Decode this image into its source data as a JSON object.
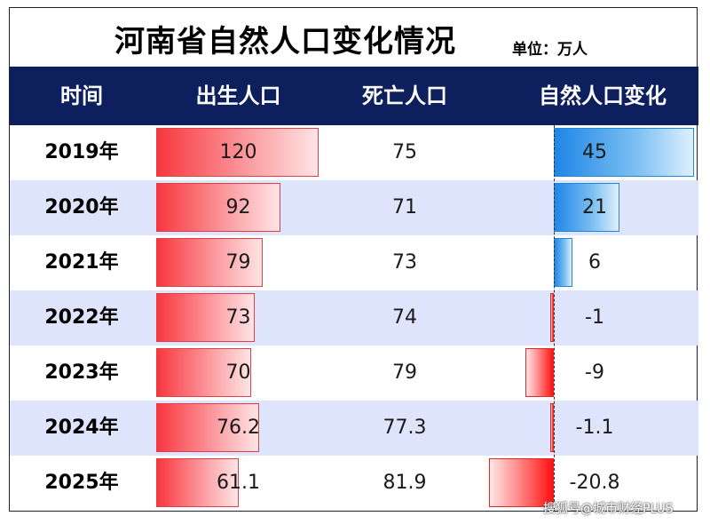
{
  "title": "河南省自然人口变化情况",
  "unit": "单位：万人",
  "headers": {
    "time": "时间",
    "birth": "出生人口",
    "death": "死亡人口",
    "natural": "自然人口变化"
  },
  "chart_data": {
    "type": "table",
    "title": "河南省自然人口变化情况",
    "unit": "单位：万人",
    "columns": [
      "时间",
      "出生人口",
      "死亡人口",
      "自然人口变化"
    ],
    "rows": [
      {
        "year": "2019年",
        "birth": 120,
        "birth_label": "120",
        "death": 75,
        "death_label": "75",
        "natural": 45,
        "natural_label": "45"
      },
      {
        "year": "2020年",
        "birth": 92,
        "birth_label": "92",
        "death": 71,
        "death_label": "71",
        "natural": 21,
        "natural_label": "21"
      },
      {
        "year": "2021年",
        "birth": 79,
        "birth_label": "79",
        "death": 73,
        "death_label": "73",
        "natural": 6,
        "natural_label": "6"
      },
      {
        "year": "2022年",
        "birth": 73,
        "birth_label": "73",
        "death": 74,
        "death_label": "74",
        "natural": -1,
        "natural_label": "-1"
      },
      {
        "year": "2023年",
        "birth": 70,
        "birth_label": "70",
        "death": 79,
        "death_label": "79",
        "natural": -9,
        "natural_label": "-9"
      },
      {
        "year": "2024年",
        "birth": 76.2,
        "birth_label": "76.2",
        "death": 77.3,
        "death_label": "77.3",
        "natural": -1.1,
        "natural_label": "-1.1"
      },
      {
        "year": "2025年",
        "birth": 61.1,
        "birth_label": "61.1",
        "death": 81.9,
        "death_label": "81.9",
        "natural": -20.8,
        "natural_label": "-20.8"
      }
    ],
    "colors": {
      "header_bg": "#0d1f5c",
      "alt_row_bg": "#dde4fb",
      "birth_bar": "#f8363e",
      "positive_bar": "#1f86e6",
      "negative_bar": "#ff1010"
    }
  },
  "watermark": "搜狐号@城市财经PLUS"
}
